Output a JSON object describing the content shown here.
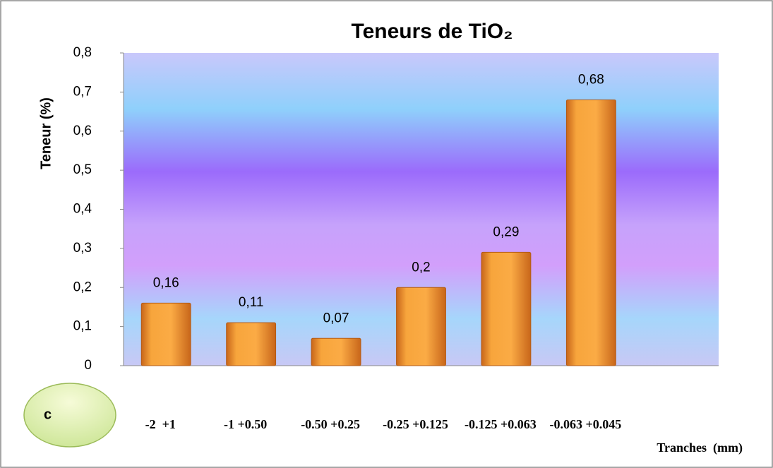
{
  "chart_data": {
    "type": "bar",
    "title": "Teneurs de TiO₂",
    "y_label": "Teneur (%)",
    "x_label": "Tranches  (mm)",
    "annotation": "c",
    "categories": [
      "-2  +1",
      "-1 +0.50",
      "-0.50 +0.25",
      "-0.25 +0.125",
      "-0.125 +0.063",
      "-0.063 +0.045",
      null
    ],
    "values": [
      0.16,
      0.11,
      0.07,
      0.2,
      0.29,
      0.68,
      null
    ],
    "value_labels": [
      "0,16",
      "0,11",
      "0,07",
      "0,2",
      "0,29",
      "0,68",
      null
    ],
    "color": "#f59a2c",
    "ylim": [
      0,
      0.8
    ],
    "yticks": [
      0,
      {
        "value": 0.1,
        "label": "0,1"
      },
      {
        "value": 0.2,
        "label": "0,2"
      },
      {
        "value": 0.3,
        "label": "0,3"
      },
      {
        "value": 0.4,
        "label": "0,4"
      },
      {
        "value": 0.5,
        "label": "0,5"
      },
      {
        "value": 0.6,
        "label": "0,6"
      },
      {
        "value": 0.7,
        "label": "0,7"
      },
      {
        "value": 0.8,
        "label": "0,8"
      }
    ],
    "grid": false
  }
}
